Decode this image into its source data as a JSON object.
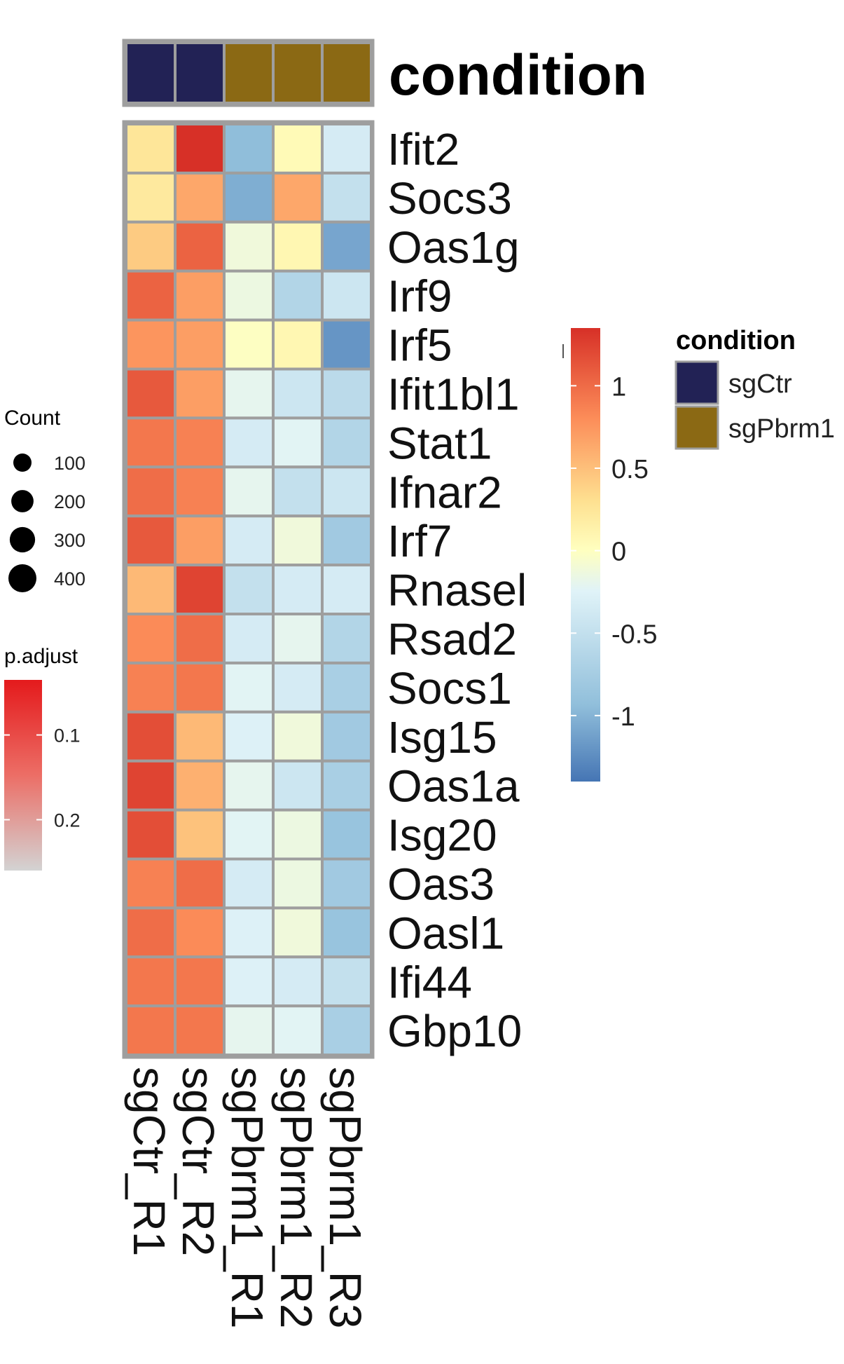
{
  "chart_data": [
    {
      "type": "heatmap",
      "title": "",
      "annotation_title": "condition",
      "samples": [
        "sgCtr_R1",
        "sgCtr_R2",
        "sgPbrm1_R1",
        "sgPbrm1_R2",
        "sgPbrm1_R3"
      ],
      "sample_condition": [
        "sgCtr",
        "sgCtr",
        "sgPbrm1",
        "sgPbrm1",
        "sgPbrm1"
      ],
      "genes": [
        "Ifit2",
        "Socs3",
        "Oas1g",
        "Irf9",
        "Irf5",
        "Ifit1bl1",
        "Stat1",
        "Ifnar2",
        "Irf7",
        "Rnasel",
        "Rsad2",
        "Socs1",
        "Isg15",
        "Oas1a",
        "Isg20",
        "Oas3",
        "Oasl1",
        "Ifi44",
        "Gbp10"
      ],
      "values": [
        [
          0.35,
          1.35,
          -0.95,
          0.05,
          -0.55
        ],
        [
          0.3,
          0.75,
          -1.05,
          0.75,
          -0.65
        ],
        [
          0.55,
          1.1,
          -0.25,
          0.1,
          -1.1
        ],
        [
          1.1,
          0.8,
          -0.3,
          -0.75,
          -0.6
        ],
        [
          0.85,
          0.8,
          -0.05,
          0.1,
          -1.2
        ],
        [
          1.15,
          0.8,
          -0.4,
          -0.6,
          -0.7
        ],
        [
          1.0,
          0.95,
          -0.55,
          -0.45,
          -0.75
        ],
        [
          1.05,
          0.95,
          -0.4,
          -0.65,
          -0.6
        ],
        [
          1.15,
          0.8,
          -0.55,
          -0.25,
          -0.85
        ],
        [
          0.65,
          1.25,
          -0.65,
          -0.55,
          -0.55
        ],
        [
          0.9,
          1.05,
          -0.55,
          -0.4,
          -0.75
        ],
        [
          0.95,
          1.0,
          -0.45,
          -0.55,
          -0.8
        ],
        [
          1.2,
          0.65,
          -0.5,
          -0.25,
          -0.85
        ],
        [
          1.25,
          0.7,
          -0.4,
          -0.6,
          -0.8
        ],
        [
          1.2,
          0.6,
          -0.45,
          -0.3,
          -0.9
        ],
        [
          0.95,
          1.05,
          -0.55,
          -0.3,
          -0.85
        ],
        [
          1.05,
          0.9,
          -0.5,
          -0.25,
          -0.9
        ],
        [
          1.0,
          1.0,
          -0.5,
          -0.55,
          -0.65
        ],
        [
          1.0,
          1.0,
          -0.4,
          -0.45,
          -0.8
        ]
      ],
      "colorbar": {
        "range": [
          -1.4,
          1.35
        ],
        "ticks": [
          "1",
          "0.5",
          "0",
          "-0.5",
          "-1"
        ],
        "tick_values": [
          1,
          0.5,
          0,
          -0.5,
          -1
        ],
        "colors": [
          "#4575b4",
          "#91bfdb",
          "#e0f3f8",
          "#ffffbf",
          "#fee090",
          "#fc8d59",
          "#d73027"
        ]
      },
      "condition_legend": {
        "title": "condition",
        "entries": [
          {
            "label": "sgCtr",
            "color": "#222255"
          },
          {
            "label": "sgPbrm1",
            "color": "#8b6914"
          }
        ]
      }
    },
    {
      "type": "legend",
      "count_legend": {
        "title": "Count",
        "entries": [
          "100",
          "200",
          "300",
          "400"
        ],
        "values": [
          100,
          200,
          300,
          400
        ]
      },
      "padjust_legend": {
        "title": "p.adjust",
        "ticks": [
          "0.1",
          "0.2"
        ],
        "tick_values": [
          0.1,
          0.2
        ],
        "colors": [
          "#e41a1c",
          "#ec6e66",
          "#d3d3d3"
        ]
      }
    }
  ]
}
